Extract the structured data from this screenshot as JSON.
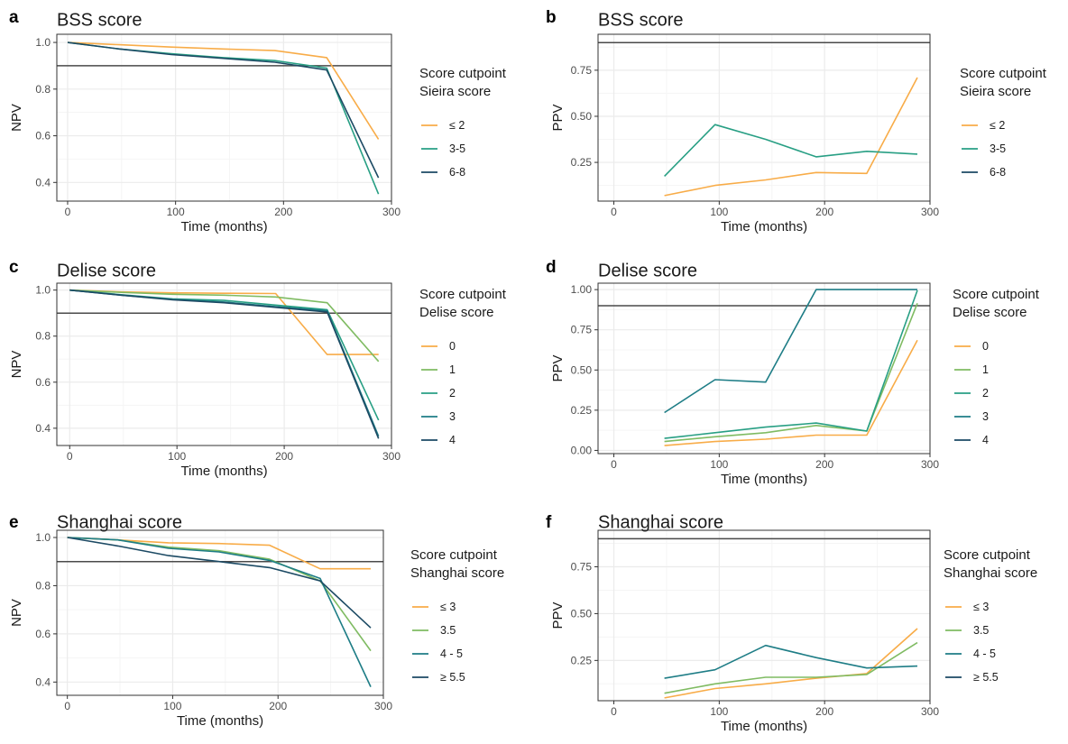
{
  "colors": {
    "series": [
      "#F8AC48",
      "#7FBB62",
      "#289F84",
      "#1E7D86",
      "#1C4A64"
    ],
    "reference_line": "#4a4a4a",
    "grid_major": "#ebebeb",
    "grid_minor": "#f5f5f5",
    "panel_border": "#333333"
  },
  "chart_data": [
    {
      "letter": "a",
      "type": "line",
      "title": "BSS score",
      "xlabel": "Time (months)",
      "ylabel": "NPV",
      "xlim": [
        -10,
        300
      ],
      "ylim": [
        0.32,
        1.035
      ],
      "xticks": [
        0,
        100,
        200,
        300
      ],
      "yticks": [
        0.4,
        0.6,
        0.8,
        1.0
      ],
      "ytick_labels": [
        "0.4",
        "0.6",
        "0.8",
        "1.0"
      ],
      "hline": 0.9,
      "legend": {
        "title": [
          "Score cutpoint",
          "Sieira score"
        ],
        "position": "right"
      },
      "series": [
        {
          "name": "≤ 2",
          "color": "#F8AC48",
          "x": [
            0,
            48,
            96,
            144,
            192,
            240,
            288
          ],
          "y": [
            1.0,
            0.99,
            0.98,
            0.972,
            0.965,
            0.935,
            0.585
          ]
        },
        {
          "name": "3-5",
          "color": "#289F84",
          "x": [
            0,
            48,
            96,
            144,
            192,
            240,
            288
          ],
          "y": [
            1.0,
            0.972,
            0.952,
            0.935,
            0.922,
            0.89,
            0.35
          ]
        },
        {
          "name": "6-8",
          "color": "#1C4A64",
          "x": [
            0,
            48,
            96,
            144,
            192,
            240,
            288
          ],
          "y": [
            1.0,
            0.972,
            0.948,
            0.932,
            0.915,
            0.882,
            0.42
          ]
        }
      ]
    },
    {
      "letter": "b",
      "type": "line",
      "title": "BSS score",
      "xlabel": "Time (months)",
      "ylabel": "PPV",
      "xlim": [
        -15,
        300
      ],
      "ylim": [
        0.04,
        0.945
      ],
      "xticks": [
        0,
        100,
        200,
        300
      ],
      "yticks": [
        0.25,
        0.5,
        0.75
      ],
      "ytick_labels": [
        "0.25",
        "0.50",
        "0.75"
      ],
      "hline": 0.9,
      "legend": {
        "title": [
          "Score cutpoint",
          "Sieira score"
        ],
        "position": "right"
      },
      "series": [
        {
          "name": "≤ 2",
          "color": "#F8AC48",
          "x": [
            48,
            96,
            144,
            192,
            240,
            288
          ],
          "y": [
            0.07,
            0.125,
            0.155,
            0.195,
            0.19,
            0.71
          ]
        },
        {
          "name": "3-5",
          "color": "#289F84",
          "x": [
            48,
            96,
            144,
            192,
            240,
            288
          ],
          "y": [
            0.175,
            0.455,
            0.375,
            0.28,
            0.31,
            0.295
          ]
        },
        {
          "name": "6-8",
          "color": "#1C4A64",
          "x": [],
          "y": []
        }
      ]
    },
    {
      "letter": "c",
      "type": "line",
      "title": "Delise score",
      "xlabel": "Time (months)",
      "ylabel": "NPV",
      "xlim": [
        -12,
        300
      ],
      "ylim": [
        0.325,
        1.03
      ],
      "xticks": [
        0,
        100,
        200,
        300
      ],
      "yticks": [
        0.4,
        0.6,
        0.8,
        1.0
      ],
      "ytick_labels": [
        "0.4",
        "0.6",
        "0.8",
        "1.0"
      ],
      "hline": 0.9,
      "legend": {
        "title": [
          "Score cutpoint",
          "Delise score"
        ],
        "position": "right"
      },
      "series": [
        {
          "name": "0",
          "color": "#F8AC48",
          "x": [
            0,
            48,
            96,
            144,
            192,
            240,
            288
          ],
          "y": [
            1.0,
            0.992,
            0.988,
            0.986,
            0.985,
            0.72,
            0.72
          ]
        },
        {
          "name": "1",
          "color": "#7FBB62",
          "x": [
            0,
            48,
            96,
            144,
            192,
            240,
            288
          ],
          "y": [
            1.0,
            0.99,
            0.982,
            0.978,
            0.97,
            0.945,
            0.69
          ]
        },
        {
          "name": "2",
          "color": "#289F84",
          "x": [
            0,
            48,
            96,
            144,
            192,
            240,
            288
          ],
          "y": [
            1.0,
            0.98,
            0.962,
            0.955,
            0.935,
            0.915,
            0.435
          ]
        },
        {
          "name": "3",
          "color": "#1E7D86",
          "x": [
            0,
            48,
            96,
            144,
            192,
            240,
            288
          ],
          "y": [
            1.0,
            0.978,
            0.96,
            0.948,
            0.928,
            0.91,
            0.365
          ]
        },
        {
          "name": "4",
          "color": "#1C4A64",
          "x": [
            0,
            48,
            96,
            144,
            192,
            240,
            288
          ],
          "y": [
            1.0,
            0.978,
            0.958,
            0.945,
            0.925,
            0.905,
            0.355
          ]
        }
      ]
    },
    {
      "letter": "d",
      "type": "line",
      "title": "Delise score",
      "xlabel": "Time (months)",
      "ylabel": "PPV",
      "xlim": [
        -15,
        300
      ],
      "ylim": [
        -0.02,
        1.04
      ],
      "xticks": [
        0,
        100,
        200,
        300
      ],
      "yticks": [
        0.0,
        0.25,
        0.5,
        0.75,
        1.0
      ],
      "ytick_labels": [
        "0.00",
        "0.25",
        "0.50",
        "0.75",
        "1.00"
      ],
      "hline": 0.9,
      "legend": {
        "title": [
          "Score cutpoint",
          "Delise score"
        ],
        "position": "right"
      },
      "series": [
        {
          "name": "0",
          "color": "#F8AC48",
          "x": [
            48,
            96,
            144,
            192,
            240,
            288
          ],
          "y": [
            0.03,
            0.055,
            0.07,
            0.095,
            0.095,
            0.685
          ]
        },
        {
          "name": "1",
          "color": "#7FBB62",
          "x": [
            48,
            96,
            144,
            192,
            240,
            288
          ],
          "y": [
            0.055,
            0.085,
            0.11,
            0.155,
            0.12,
            0.915
          ]
        },
        {
          "name": "2",
          "color": "#289F84",
          "x": [
            48,
            96,
            144,
            192,
            240,
            288
          ],
          "y": [
            0.075,
            0.11,
            0.145,
            0.17,
            0.12,
            0.995
          ]
        },
        {
          "name": "3",
          "color": "#1E7D86",
          "x": [
            48,
            96,
            144,
            192,
            240,
            288
          ],
          "y": [
            0.235,
            0.44,
            0.425,
            1.0,
            1.0,
            1.0
          ]
        },
        {
          "name": "4",
          "color": "#1C4A64",
          "x": [],
          "y": []
        }
      ]
    },
    {
      "letter": "e",
      "type": "line",
      "title": "Shanghai score",
      "xlabel": "Time (months)",
      "ylabel": "NPV",
      "xlim": [
        -10,
        300
      ],
      "ylim": [
        0.345,
        1.03
      ],
      "xticks": [
        0,
        100,
        200,
        300
      ],
      "yticks": [
        0.4,
        0.6,
        0.8,
        1.0
      ],
      "ytick_labels": [
        "0.4",
        "0.6",
        "0.8",
        "1.0"
      ],
      "hline": 0.9,
      "legend": {
        "title": [
          "Score cutpoint",
          "Shanghai score"
        ],
        "position": "right"
      },
      "series": [
        {
          "name": "≤ 3",
          "color": "#F8AC48",
          "x": [
            0,
            48,
            96,
            144,
            192,
            240,
            288
          ],
          "y": [
            1.0,
            0.99,
            0.978,
            0.975,
            0.968,
            0.87,
            0.87
          ]
        },
        {
          "name": "3.5",
          "color": "#7FBB62",
          "x": [
            0,
            48,
            96,
            144,
            192,
            240,
            288
          ],
          "y": [
            1.0,
            0.99,
            0.96,
            0.945,
            0.91,
            0.82,
            0.53
          ]
        },
        {
          "name": "4 - 5",
          "color": "#1E7D86",
          "x": [
            0,
            48,
            96,
            144,
            192,
            240,
            288
          ],
          "y": [
            1.0,
            0.99,
            0.955,
            0.94,
            0.905,
            0.83,
            0.38
          ]
        },
        {
          "name": "≥ 5.5",
          "color": "#1C4A64",
          "x": [
            0,
            48,
            96,
            144,
            192,
            240,
            288
          ],
          "y": [
            1.0,
            0.965,
            0.925,
            0.9,
            0.875,
            0.82,
            0.625
          ]
        }
      ]
    },
    {
      "letter": "f",
      "type": "line",
      "title": "Shanghai score",
      "xlabel": "Time (months)",
      "ylabel": "PPV",
      "xlim": [
        -15,
        300
      ],
      "ylim": [
        0.035,
        0.945
      ],
      "xticks": [
        0,
        100,
        200,
        300
      ],
      "yticks": [
        0.25,
        0.5,
        0.75
      ],
      "ytick_labels": [
        "0.25",
        "0.50",
        "0.75"
      ],
      "hline": 0.9,
      "legend": {
        "title": [
          "Score cutpoint",
          "Shanghai score"
        ],
        "position": "right"
      },
      "series": [
        {
          "name": "≤ 3",
          "color": "#F8AC48",
          "x": [
            48,
            96,
            144,
            192,
            240,
            288
          ],
          "y": [
            0.05,
            0.1,
            0.125,
            0.155,
            0.18,
            0.42
          ]
        },
        {
          "name": "3.5",
          "color": "#7FBB62",
          "x": [
            48,
            96,
            144,
            192,
            240,
            288
          ],
          "y": [
            0.075,
            0.125,
            0.16,
            0.16,
            0.175,
            0.345
          ]
        },
        {
          "name": "4 - 5",
          "color": "#1E7D86",
          "x": [
            48,
            96,
            144,
            192,
            240,
            288
          ],
          "y": [
            0.155,
            0.2,
            0.33,
            0.265,
            0.21,
            0.22
          ]
        },
        {
          "name": "≥ 5.5",
          "color": "#1C4A64",
          "x": [],
          "y": []
        }
      ]
    }
  ]
}
